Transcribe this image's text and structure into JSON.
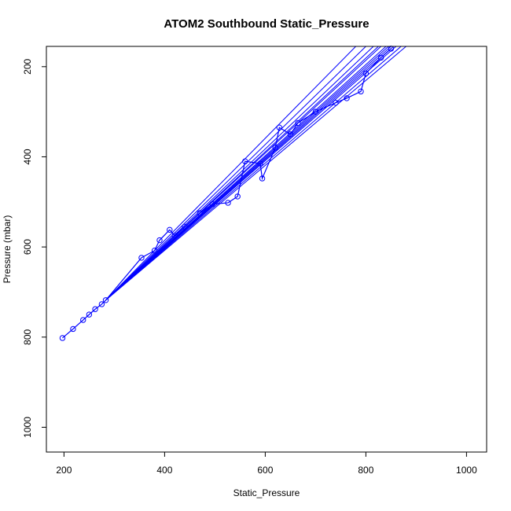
{
  "chart_data": {
    "type": "line",
    "title": "ATOM2 Southbound Static_Pressure",
    "xlabel": "Static_Pressure",
    "ylabel": "Pressure (mbar)",
    "xlim": [
      165,
      1040
    ],
    "ylim": [
      1055,
      155
    ],
    "y_reversed": true,
    "x_ticks": [
      200,
      400,
      600,
      800,
      1000
    ],
    "y_ticks": [
      200,
      400,
      600,
      800,
      1000
    ],
    "grid": false,
    "legend": "none",
    "series_color": "#0000ff",
    "points_approx": [
      {
        "x": 197,
        "y": 802
      },
      {
        "x": 218,
        "y": 782
      },
      {
        "x": 238,
        "y": 762
      },
      {
        "x": 250,
        "y": 750
      },
      {
        "x": 262,
        "y": 738
      },
      {
        "x": 275,
        "y": 727
      },
      {
        "x": 283,
        "y": 718
      },
      {
        "x": 354,
        "y": 624
      },
      {
        "x": 380,
        "y": 608
      },
      {
        "x": 390,
        "y": 585
      },
      {
        "x": 410,
        "y": 562
      },
      {
        "x": 420,
        "y": 575
      },
      {
        "x": 440,
        "y": 555
      },
      {
        "x": 470,
        "y": 525
      },
      {
        "x": 495,
        "y": 505
      },
      {
        "x": 526,
        "y": 502
      },
      {
        "x": 545,
        "y": 488
      },
      {
        "x": 560,
        "y": 410
      },
      {
        "x": 590,
        "y": 415
      },
      {
        "x": 594,
        "y": 448
      },
      {
        "x": 620,
        "y": 380
      },
      {
        "x": 628,
        "y": 335
      },
      {
        "x": 650,
        "y": 350
      },
      {
        "x": 665,
        "y": 325
      },
      {
        "x": 700,
        "y": 300
      },
      {
        "x": 740,
        "y": 280
      },
      {
        "x": 762,
        "y": 270
      },
      {
        "x": 790,
        "y": 255
      },
      {
        "x": 800,
        "y": 215
      },
      {
        "x": 830,
        "y": 180
      },
      {
        "x": 850,
        "y": 160
      }
    ],
    "profile_endpoints_top": [
      780,
      800,
      815,
      825,
      830,
      840,
      845,
      850,
      855,
      860,
      870,
      880
    ],
    "profile_endpoints_bottom_x": 283,
    "profile_endpoints_bottom_y": 718
  }
}
